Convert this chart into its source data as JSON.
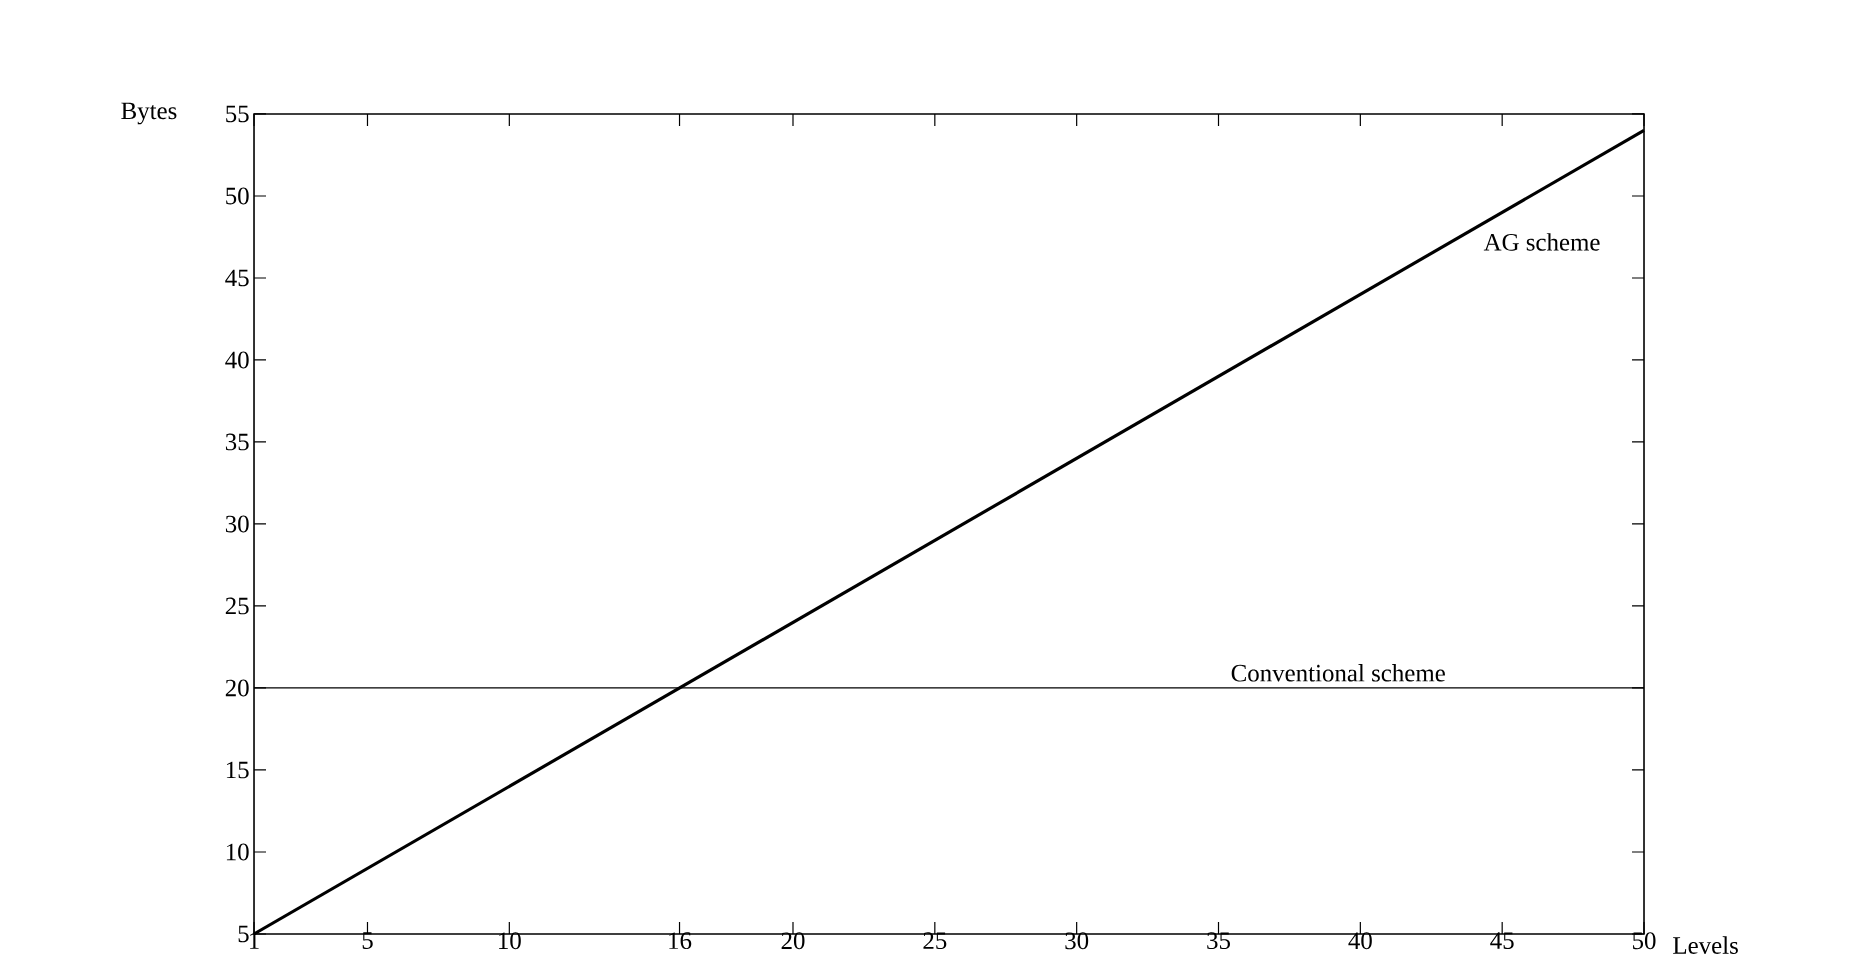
{
  "chart_data": {
    "type": "line",
    "xlabel": "Levels",
    "ylabel": "Bytes",
    "xlim": [
      1,
      50
    ],
    "ylim": [
      5,
      55
    ],
    "xticks": [
      1,
      5,
      10,
      16,
      20,
      25,
      30,
      35,
      40,
      45,
      50
    ],
    "yticks": [
      5,
      10,
      15,
      20,
      25,
      30,
      35,
      40,
      45,
      50,
      55
    ],
    "x": [
      1,
      50
    ],
    "series": [
      {
        "name": "AG scheme",
        "color": "#000000",
        "values": [
          5,
          54
        ]
      },
      {
        "name": "Conventional scheme",
        "color": "#000000",
        "values": [
          20,
          20
        ]
      }
    ]
  }
}
